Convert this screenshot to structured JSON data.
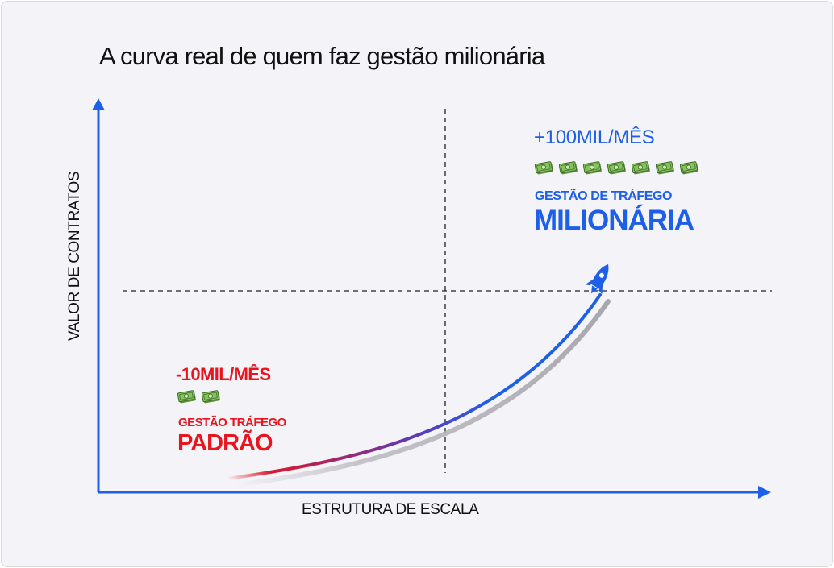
{
  "title": "A curva real de quem faz gestão milionária",
  "axes": {
    "y_label": "VALOR DE CONTRATOS",
    "x_label": "ESTRUTURA DE ESCALA"
  },
  "high": {
    "amount": "+100MIL/MÊS",
    "bill_count": 7,
    "label_small": "GESTÃO DE TRÁFEGO",
    "label_big": "MILIONÁRIA",
    "color": "#1d5fe6"
  },
  "low": {
    "amount": "-10MIL/MÊS",
    "bill_count": 2,
    "label_small": "GESTÃO TRÁFEGO",
    "label_big": "PADRÃO",
    "color": "#e8141e"
  },
  "icons": {
    "money": "money-bill-icon",
    "rocket": "rocket-icon"
  },
  "colors": {
    "axis": "#1d5fe6",
    "curve_start": "#e8141e",
    "curve_end": "#1d5fe6",
    "background": "#f4f3f7"
  }
}
